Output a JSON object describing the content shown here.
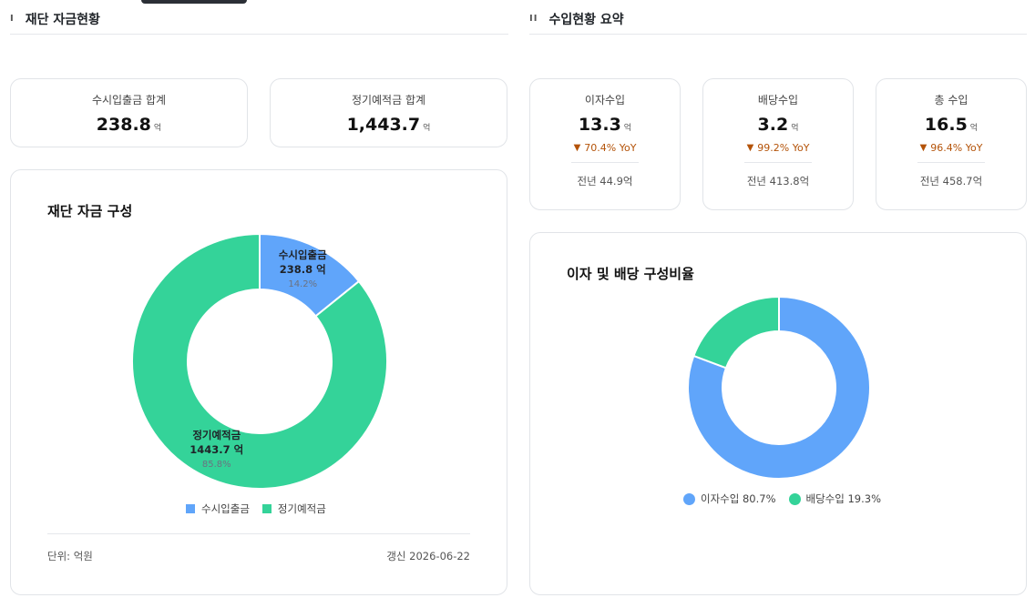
{
  "left_section": {
    "roman": "I",
    "title": "재단 자금현황",
    "kpis": [
      {
        "label": "수시입출금 합계",
        "value": "238.8",
        "unit": "억"
      },
      {
        "label": "정기예적금 합계",
        "value": "1,443.7",
        "unit": "억"
      }
    ],
    "panel": {
      "title": "재단 자금 구성",
      "unit_note": "단위: 억원",
      "updated": "갱신 2026-06-22"
    }
  },
  "right_section": {
    "roman": "II",
    "title": "수입현황 요약",
    "kpis": [
      {
        "label": "이자수입",
        "value": "13.3",
        "unit": "억",
        "yoy": "70.4% YoY",
        "prev": "전년 44.9억"
      },
      {
        "label": "배당수입",
        "value": "3.2",
        "unit": "억",
        "yoy": "99.2% YoY",
        "prev": "전년 413.8억"
      },
      {
        "label": "총 수입",
        "value": "16.5",
        "unit": "억",
        "yoy": "96.4% YoY",
        "prev": "전년 458.7억"
      }
    ],
    "panel": {
      "title": "이자 및 배당 구성비율"
    }
  },
  "icons": {
    "yoy_down": "triangle-down-icon"
  },
  "colors": {
    "blue": "#60a5fa",
    "green": "#34d399",
    "down": "#b45309"
  },
  "chart_data": [
    {
      "type": "pie",
      "variant": "donut",
      "title": "재단 자금 구성",
      "categories": [
        "수시입출금",
        "정기예적금"
      ],
      "values": [
        238.8,
        1443.7
      ],
      "value_labels": [
        "238.8 억",
        "1443.7 억"
      ],
      "percent_labels": [
        "14.2%",
        "85.8%"
      ],
      "colors": [
        "#60a5fa",
        "#34d399"
      ],
      "legend": "bottom"
    },
    {
      "type": "pie",
      "variant": "donut",
      "title": "이자 및 배당 구성비율",
      "categories": [
        "이자수입",
        "배당수입"
      ],
      "values": [
        80.7,
        19.3
      ],
      "legend_labels": [
        "이자수입 80.7%",
        "배당수입 19.3%"
      ],
      "colors": [
        "#60a5fa",
        "#34d399"
      ],
      "legend": "bottom"
    }
  ]
}
